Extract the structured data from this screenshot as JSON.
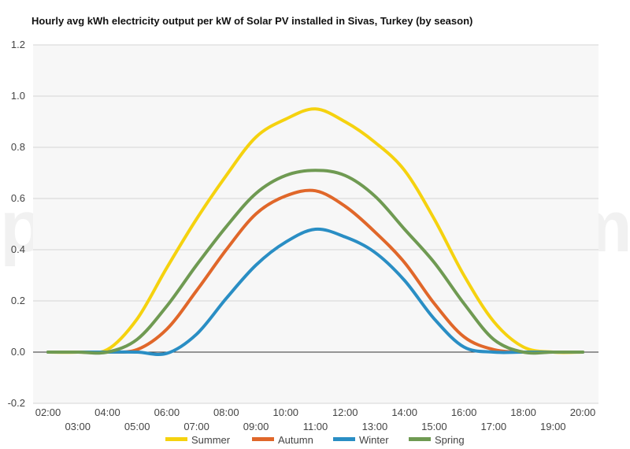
{
  "chart_data": {
    "type": "line",
    "title": "Hourly avg kWh electricity output per kW of Solar PV installed in Sivas, Turkey (by season)",
    "xlabel": "",
    "ylabel": "",
    "ylim": [
      -0.2,
      1.2
    ],
    "yticks": [
      "-0.2",
      "0.0",
      "0.2",
      "0.4",
      "0.6",
      "0.8",
      "1.0",
      "1.2"
    ],
    "x": [
      "02:00",
      "03:00",
      "04:00",
      "05:00",
      "06:00",
      "07:00",
      "08:00",
      "09:00",
      "10:00",
      "11:00",
      "12:00",
      "13:00",
      "14:00",
      "15:00",
      "16:00",
      "17:00",
      "18:00",
      "19:00",
      "20:00"
    ],
    "grid": true,
    "legend_position": "bottom",
    "series": [
      {
        "name": "Summer",
        "color": "#f5d20f",
        "values": [
          0,
          0,
          0.01,
          0.13,
          0.33,
          0.52,
          0.69,
          0.84,
          0.91,
          0.95,
          0.9,
          0.82,
          0.71,
          0.52,
          0.3,
          0.12,
          0.02,
          0,
          0
        ]
      },
      {
        "name": "Autumn",
        "color": "#e0672a",
        "values": [
          0,
          0,
          0,
          0.01,
          0.09,
          0.24,
          0.4,
          0.54,
          0.61,
          0.63,
          0.57,
          0.47,
          0.35,
          0.19,
          0.06,
          0.01,
          0,
          0,
          0
        ]
      },
      {
        "name": "Winter",
        "color": "#2a8ec4",
        "values": [
          0,
          0,
          0,
          0,
          -0.005,
          0.07,
          0.21,
          0.34,
          0.43,
          0.48,
          0.45,
          0.39,
          0.28,
          0.13,
          0.02,
          0,
          0,
          0,
          0
        ]
      },
      {
        "name": "Spring",
        "color": "#6f9a52",
        "values": [
          0,
          0,
          0,
          0.05,
          0.18,
          0.34,
          0.49,
          0.62,
          0.69,
          0.71,
          0.69,
          0.61,
          0.48,
          0.35,
          0.19,
          0.05,
          0,
          0,
          0
        ]
      }
    ]
  },
  "watermark": "profileSOLAR.com"
}
